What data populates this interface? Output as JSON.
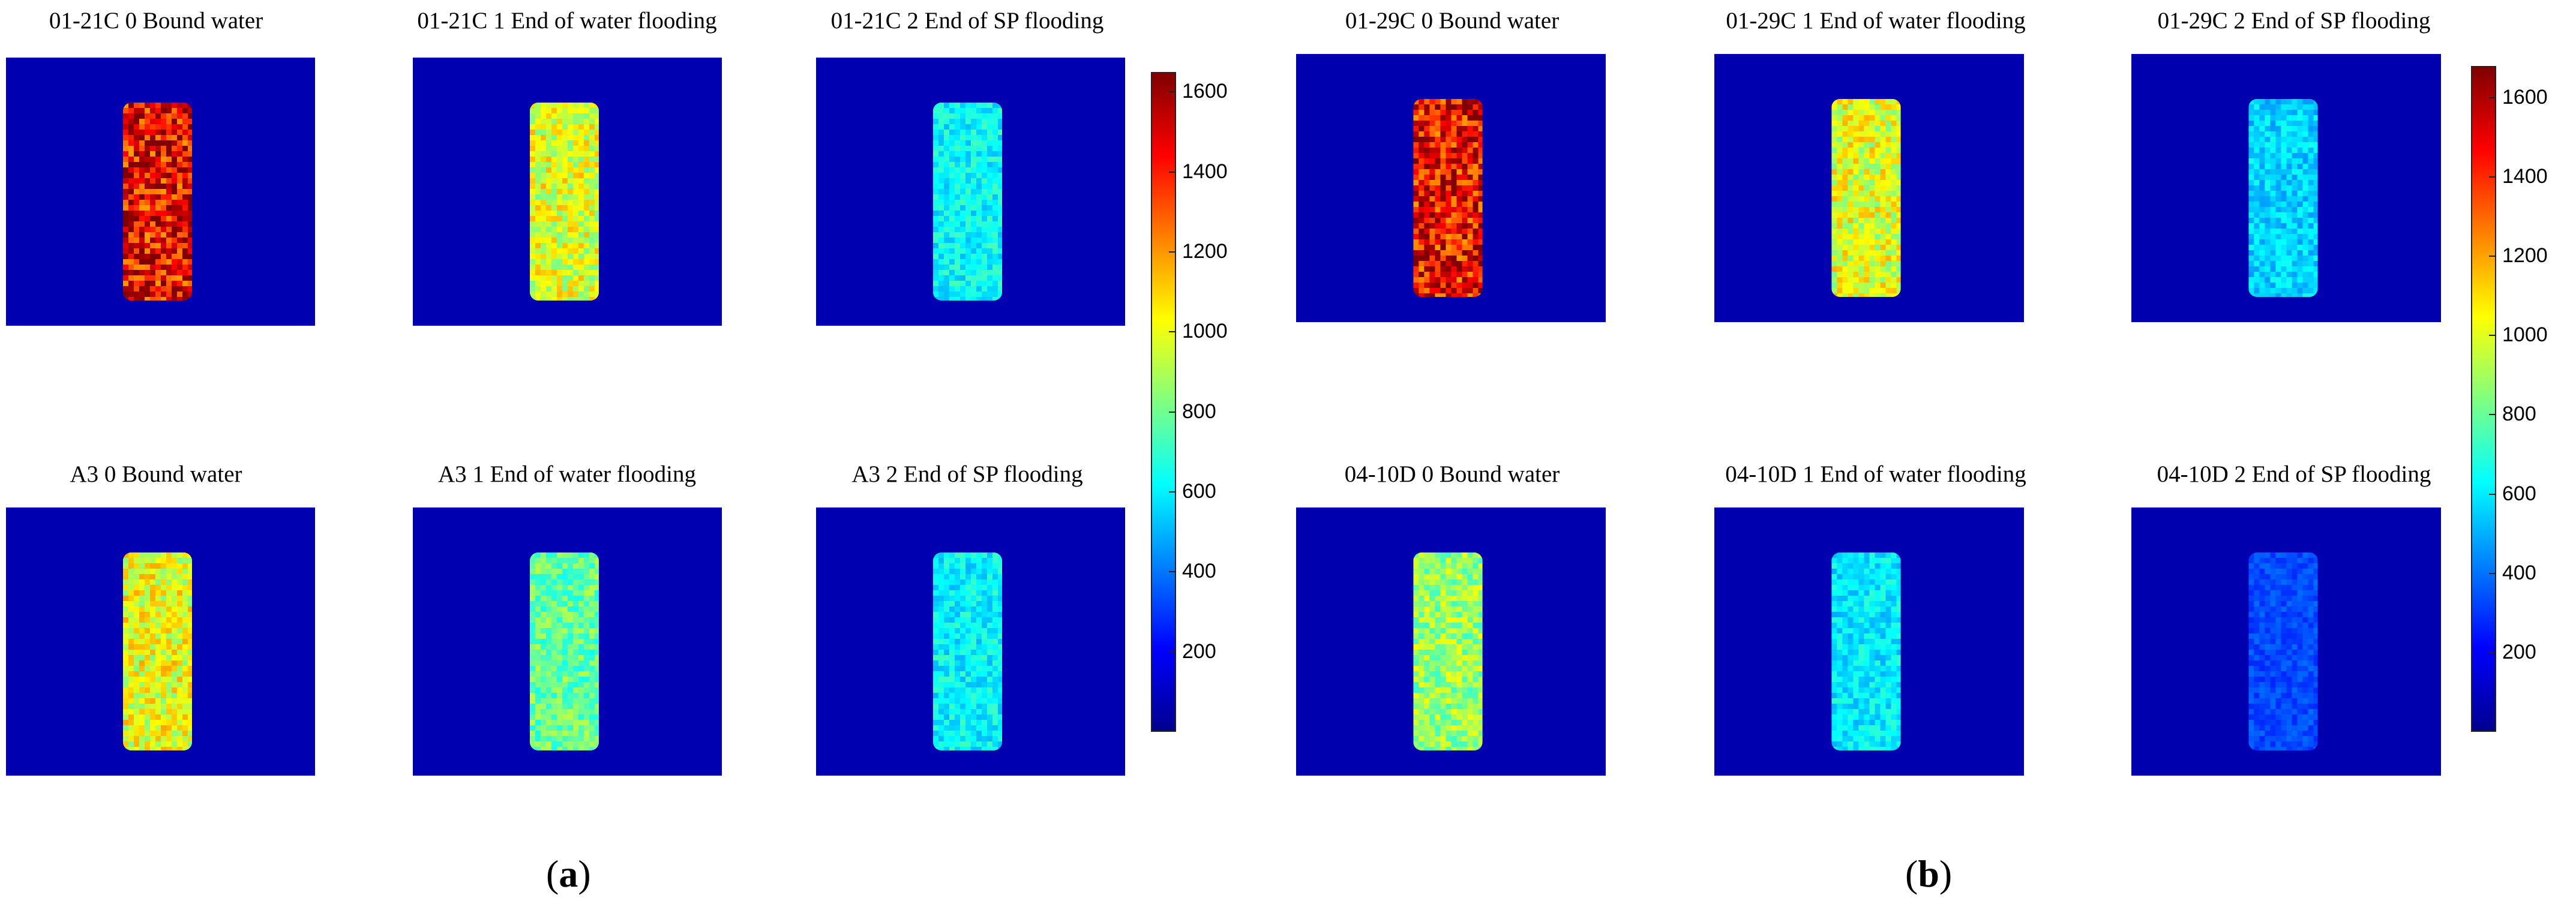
{
  "colors": {
    "background": "#0010ff",
    "colormap": [
      "#00008f",
      "#0000ff",
      "#0080ff",
      "#00ffff",
      "#80ff80",
      "#ffff00",
      "#ff8000",
      "#ff0000",
      "#800000"
    ]
  },
  "chart_data": [
    {
      "type": "heatmap",
      "caption_letter": "a",
      "colorbar": {
        "range": [
          0,
          1650
        ],
        "ticks": [
          200,
          400,
          600,
          800,
          1000,
          1200,
          1400,
          1600
        ]
      },
      "panels": [
        {
          "title": "01-21C 0 Bound water",
          "intensity": 1450
        },
        {
          "title": "01-21C 1  End of water flooding",
          "intensity": 980
        },
        {
          "title": "01-21C 2 End of SP flooding",
          "intensity": 620
        },
        {
          "title": "A3 0 Bound water",
          "intensity": 1000
        },
        {
          "title": "A3 1 End of water flooding",
          "intensity": 780
        },
        {
          "title": "A3 2 End of SP flooding",
          "intensity": 610
        }
      ]
    },
    {
      "type": "heatmap",
      "caption_letter": "b",
      "colorbar": {
        "range": [
          0,
          1680
        ],
        "ticks": [
          200,
          400,
          600,
          800,
          1000,
          1200,
          1400,
          1600
        ]
      },
      "panels": [
        {
          "title": "01-29C 0 Bound water",
          "intensity": 1480
        },
        {
          "title": "01-29C 1 End of water flooding",
          "intensity": 1000
        },
        {
          "title": "01-29C 2 End of SP flooding",
          "intensity": 560
        },
        {
          "title": "04-10D 0 Bound water",
          "intensity": 880
        },
        {
          "title": "04-10D 1 End of water flooding",
          "intensity": 600
        },
        {
          "title": "04-10D 2 End of SP flooding",
          "intensity": 330
        }
      ]
    }
  ]
}
